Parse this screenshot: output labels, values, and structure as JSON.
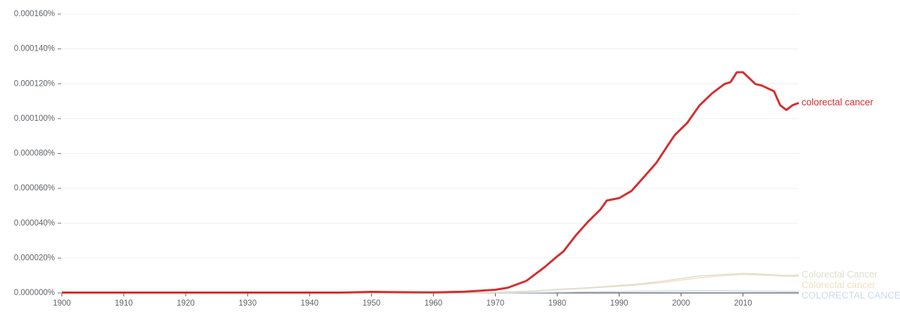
{
  "chart_data": {
    "type": "line",
    "x": [
      1900,
      1910,
      1920,
      1930,
      1940,
      1945,
      1950,
      1955,
      1960,
      1965,
      1970,
      1972,
      1975,
      1978,
      1980,
      1981,
      1983,
      1985,
      1987,
      1988,
      1990,
      1992,
      1994,
      1996,
      1998,
      1999,
      2001,
      2003,
      2005,
      2007,
      2008,
      2009,
      2010,
      2012,
      2013,
      2015,
      2016,
      2017,
      2018,
      2019
    ],
    "series": [
      {
        "name": "colorectal cancer",
        "color": "#d32f2f",
        "width": 3,
        "values": [
          2e-07,
          2e-07,
          2e-07,
          2e-07,
          2e-07,
          2e-07,
          6e-07,
          4e-07,
          3e-07,
          7e-07,
          1.8e-06,
          3e-06,
          6.9e-06,
          1.49e-05,
          2.1e-05,
          2.38e-05,
          3.3e-05,
          4.1e-05,
          4.8e-05,
          5.3e-05,
          5.44e-05,
          5.85e-05,
          6.65e-05,
          7.46e-05,
          8.55e-05,
          9.07e-05,
          9.76e-05,
          0.0001077,
          0.0001145,
          0.0001198,
          0.000121,
          0.0001266,
          0.0001266,
          0.0001198,
          0.000119,
          0.0001157,
          0.0001077,
          0.000105,
          0.0001077,
          0.000109
        ]
      },
      {
        "name": "Colorectal Cancer",
        "color": "#dcdfd2",
        "width": 1.5,
        "values": [
          0,
          0,
          0,
          0,
          0,
          0,
          0,
          0,
          0,
          1e-07,
          3e-07,
          6e-07,
          1e-06,
          1.5e-06,
          2e-06,
          2.2e-06,
          2.6e-06,
          3e-06,
          3.5e-06,
          3.8e-06,
          4.3e-06,
          4.8e-06,
          5.5e-06,
          6.3e-06,
          7.2e-06,
          7.8e-06,
          8.8e-06,
          9.8e-06,
          1.02e-05,
          1.06e-05,
          1.08e-05,
          1.1e-05,
          1.12e-05,
          1.1e-05,
          1.08e-05,
          1.04e-05,
          1.02e-05,
          1e-05,
          1.01e-05,
          1.03e-05
        ]
      },
      {
        "name": "Colorectal cancer",
        "color": "#f3dfc2",
        "width": 1.5,
        "values": [
          0,
          0,
          0,
          0,
          0,
          0,
          0,
          0,
          0,
          1e-07,
          2e-07,
          4e-07,
          8e-07,
          1.3e-06,
          1.7e-06,
          1.9e-06,
          2.3e-06,
          2.7e-06,
          3.1e-06,
          3.4e-06,
          3.8e-06,
          4.3e-06,
          4.9e-06,
          5.6e-06,
          6.4e-06,
          6.9e-06,
          7.8e-06,
          8.8e-06,
          9.4e-06,
          9.9e-06,
          1.02e-05,
          1.04e-05,
          1.06e-05,
          1.04e-05,
          1.02e-05,
          9.9e-06,
          9.7e-06,
          9.5e-06,
          9.6e-06,
          9.7e-06
        ]
      },
      {
        "name": "COLORECTAL CANCER",
        "color": "#c9daf2",
        "width": 1.5,
        "values": [
          0,
          0,
          0,
          0,
          0,
          0,
          0,
          0,
          0,
          0,
          1e-07,
          1e-07,
          2e-07,
          3e-07,
          4e-07,
          4e-07,
          5e-07,
          6e-07,
          7e-07,
          7e-07,
          8e-07,
          9e-07,
          1e-06,
          1e-06,
          1.1e-06,
          1.1e-06,
          1.2e-06,
          1.2e-06,
          1.2e-06,
          1.2e-06,
          1.2e-06,
          1.1e-06,
          1.1e-06,
          1e-06,
          1e-06,
          1e-06,
          9e-07,
          9e-07,
          9e-07,
          9e-07
        ]
      }
    ],
    "xlim": [
      1900,
      2019
    ],
    "xticks": [
      1900,
      1910,
      1920,
      1930,
      1940,
      1950,
      1960,
      1970,
      1980,
      1990,
      2000,
      2010
    ],
    "ylim": [
      0,
      0.00016
    ],
    "yticks": [
      {
        "value": 0,
        "label": "0.000000%"
      },
      {
        "value": 2e-05,
        "label": "0.000020%"
      },
      {
        "value": 4e-05,
        "label": "0.000040%"
      },
      {
        "value": 6e-05,
        "label": "0.000060%"
      },
      {
        "value": 8e-05,
        "label": "0.000080%"
      },
      {
        "value": 0.0001,
        "label": "0.000100%"
      },
      {
        "value": 0.00012,
        "label": "0.000120%"
      },
      {
        "value": 0.00014,
        "label": "0.000140%"
      },
      {
        "value": 0.00016,
        "label": "0.000160%"
      }
    ],
    "grid": true
  }
}
